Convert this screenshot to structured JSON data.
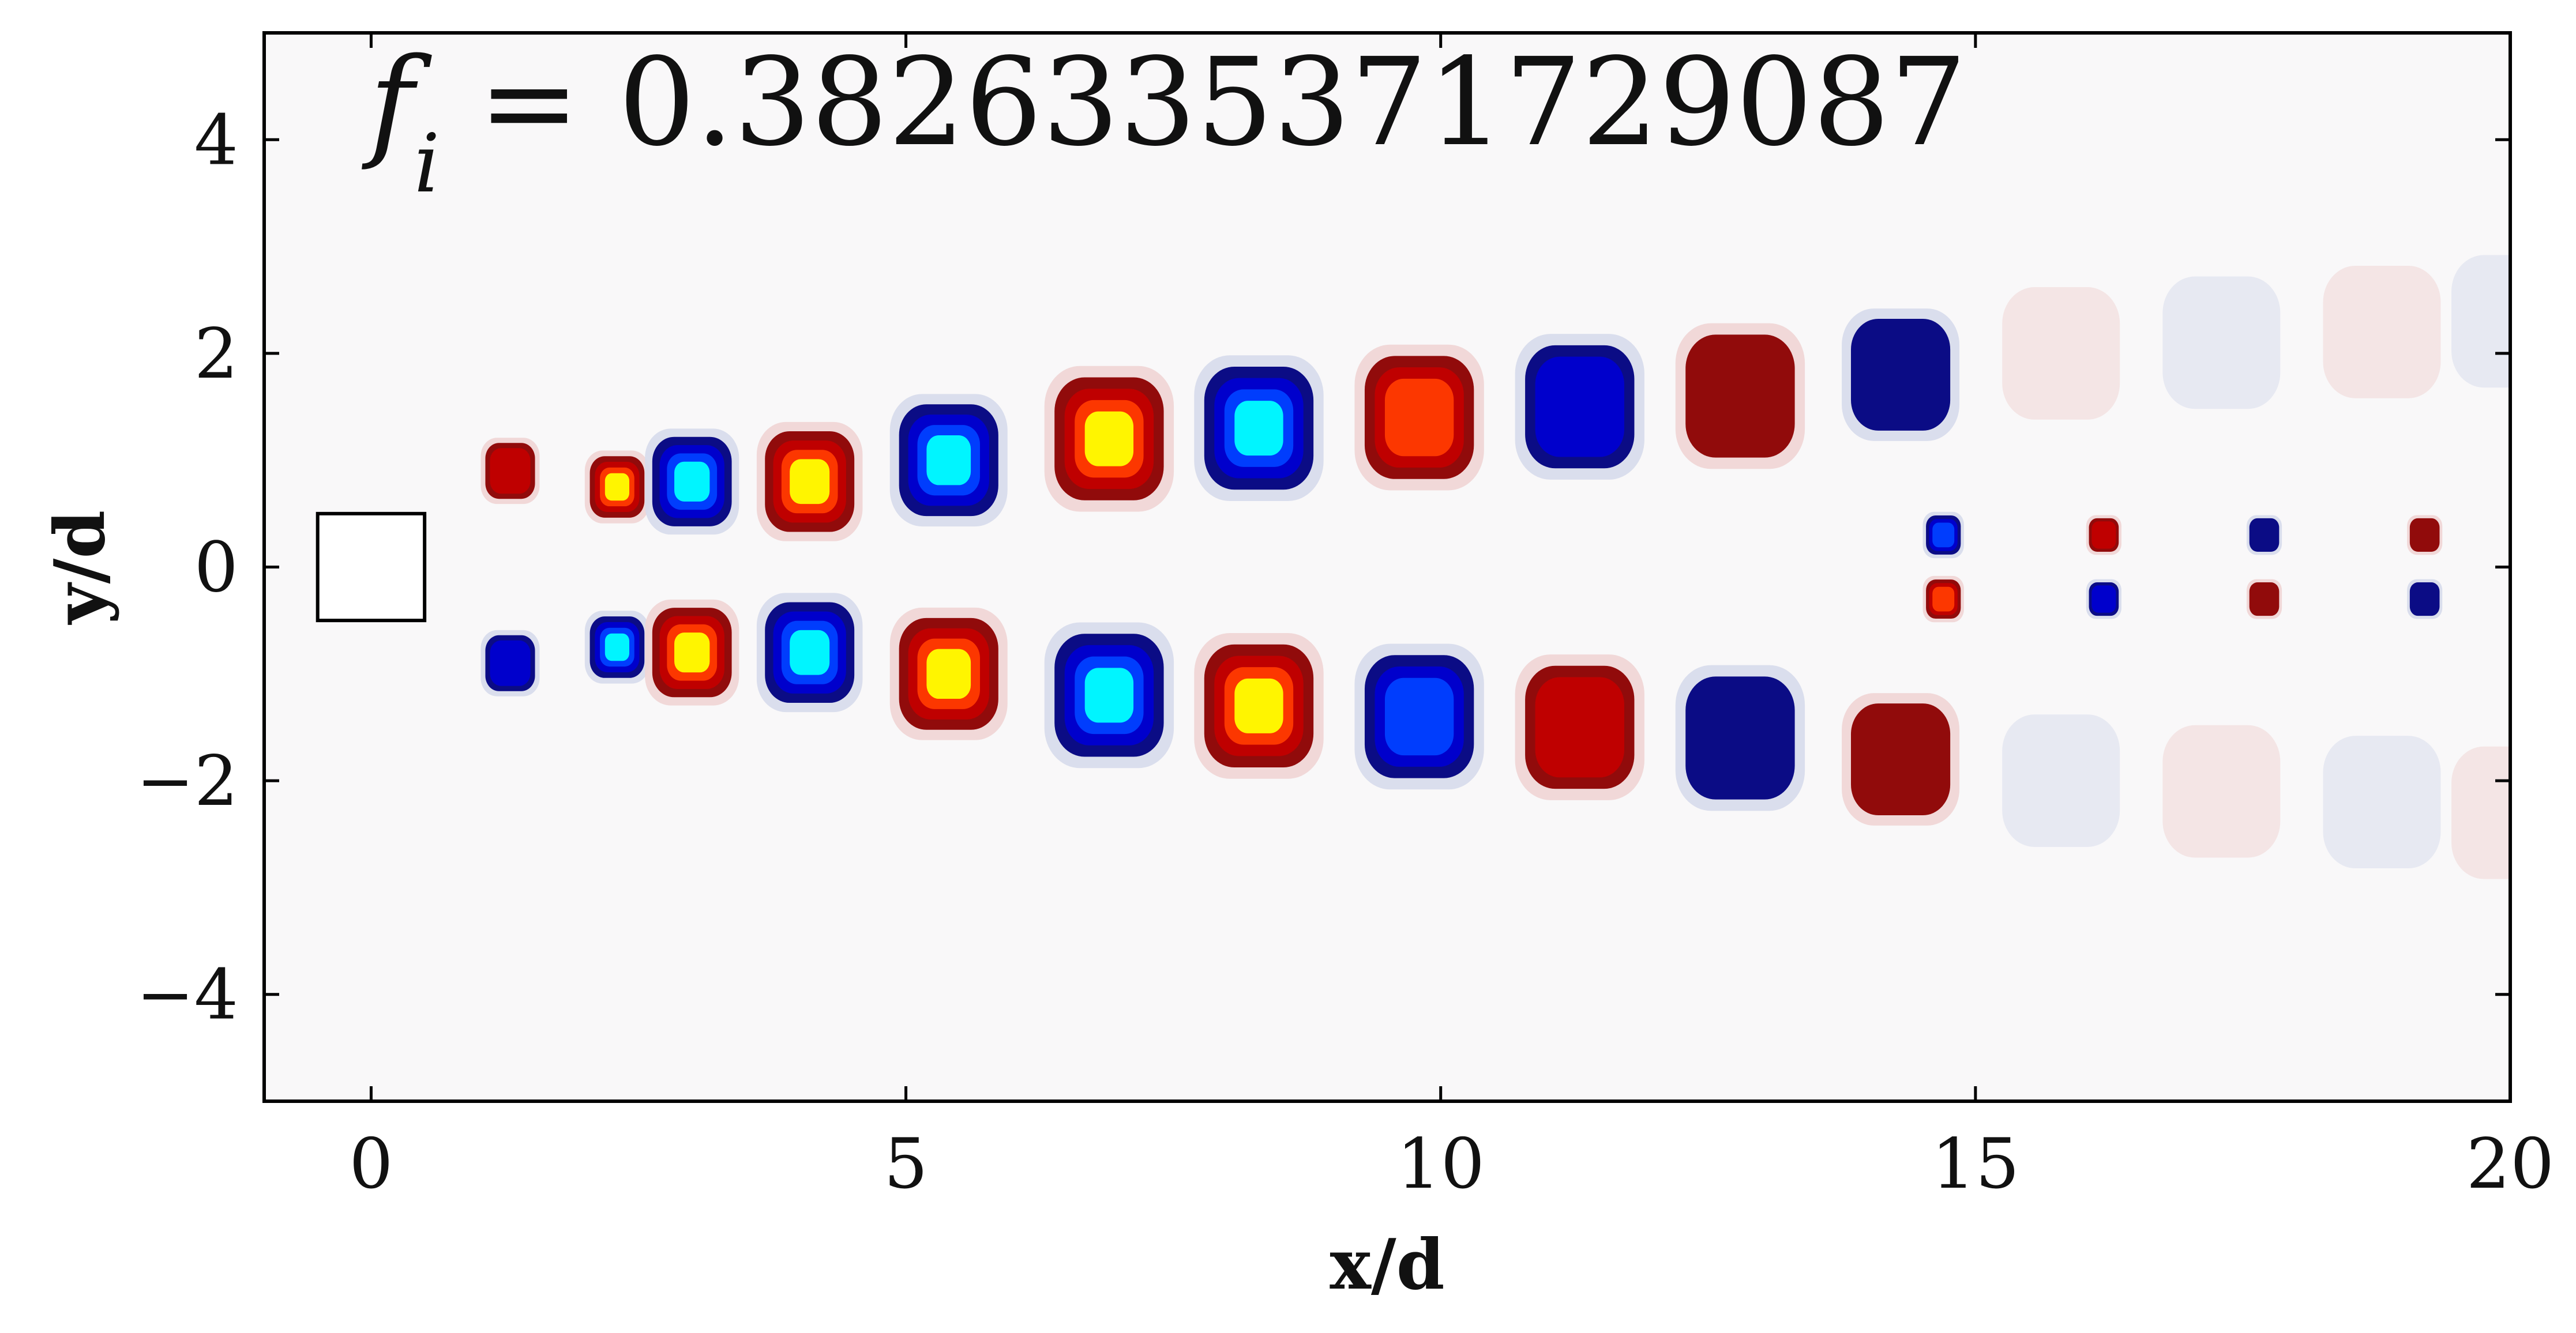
{
  "chart_data": {
    "type": "heatmap",
    "title": "",
    "annotation": {
      "symbol": "f",
      "subscript": "i",
      "equals": " = ",
      "value": "0.3826335371729087"
    },
    "xlabel": "x/d",
    "ylabel": "y/d",
    "xlim": [
      -1,
      20
    ],
    "ylim": [
      -5,
      5
    ],
    "x_ticks": [
      0,
      5,
      10,
      15,
      20
    ],
    "x_tick_labels": [
      "0",
      "5",
      "10",
      "15",
      "20"
    ],
    "y_ticks": [
      -4,
      -2,
      0,
      2,
      4
    ],
    "y_tick_labels": [
      "−4",
      "−2",
      "0",
      "2",
      "4"
    ],
    "grid": false,
    "colormap": "seismic-like (saturated: cyan negative, yellow positive)",
    "body": {
      "shape": "square",
      "center": [
        0,
        0
      ],
      "size": 1
    },
    "colors": {
      "neutral": "#f9f8f9",
      "pos_sat": "#ffff00",
      "pos_high": "#ff3a00",
      "pos_mid": "#c20000",
      "pos_low": "#8b0000",
      "pos_faint": "#f0d6d6",
      "neg_sat": "#00ffff",
      "neg_high": "#0040ff",
      "neg_mid": "#0000d0",
      "neg_low": "#000080",
      "neg_faint": "#d8dcec"
    },
    "vortices": [
      {
        "x": 1.3,
        "y": 0.9,
        "a": 0.5,
        "sign": 1,
        "level": 0.55
      },
      {
        "x": 1.3,
        "y": -0.9,
        "a": 0.5,
        "sign": -1,
        "level": 0.55
      },
      {
        "x": 2.3,
        "y": 0.75,
        "a": 0.55,
        "sign": 1,
        "level": 1.0
      },
      {
        "x": 2.3,
        "y": -0.75,
        "a": 0.55,
        "sign": -1,
        "level": 1.0
      },
      {
        "x": 3.0,
        "y": 0.8,
        "a": 0.8,
        "sign": -1,
        "level": 1.0
      },
      {
        "x": 3.0,
        "y": -0.8,
        "a": 0.8,
        "sign": 1,
        "level": 1.0
      },
      {
        "x": 4.1,
        "y": 0.8,
        "a": 0.9,
        "sign": 1,
        "level": 1.0
      },
      {
        "x": 4.1,
        "y": -0.8,
        "a": 0.9,
        "sign": -1,
        "level": 1.0
      },
      {
        "x": 5.4,
        "y": 1.0,
        "a": 1.0,
        "sign": -1,
        "level": 1.0
      },
      {
        "x": 5.4,
        "y": -1.0,
        "a": 1.0,
        "sign": 1,
        "level": 1.0
      },
      {
        "x": 6.9,
        "y": 1.2,
        "a": 1.1,
        "sign": 1,
        "level": 1.0
      },
      {
        "x": 6.9,
        "y": -1.2,
        "a": 1.1,
        "sign": -1,
        "level": 1.0
      },
      {
        "x": 8.3,
        "y": 1.3,
        "a": 1.1,
        "sign": -1,
        "level": 0.9
      },
      {
        "x": 8.3,
        "y": -1.3,
        "a": 1.1,
        "sign": 1,
        "level": 0.9
      },
      {
        "x": 9.8,
        "y": 1.4,
        "a": 1.1,
        "sign": 1,
        "level": 0.75
      },
      {
        "x": 9.8,
        "y": -1.4,
        "a": 1.1,
        "sign": -1,
        "level": 0.75
      },
      {
        "x": 11.3,
        "y": 1.5,
        "a": 1.1,
        "sign": -1,
        "level": 0.55
      },
      {
        "x": 11.3,
        "y": -1.5,
        "a": 1.1,
        "sign": 1,
        "level": 0.55
      },
      {
        "x": 12.8,
        "y": 1.6,
        "a": 1.1,
        "sign": 1,
        "level": 0.42
      },
      {
        "x": 12.8,
        "y": -1.6,
        "a": 1.1,
        "sign": -1,
        "level": 0.42
      },
      {
        "x": 14.3,
        "y": 1.8,
        "a": 1.0,
        "sign": -1,
        "level": 0.3
      },
      {
        "x": 14.3,
        "y": -1.8,
        "a": 1.0,
        "sign": 1,
        "level": 0.3
      },
      {
        "x": 15.8,
        "y": 2.0,
        "a": 1.0,
        "sign": 1,
        "level": 0.18
      },
      {
        "x": 15.8,
        "y": -2.0,
        "a": 1.0,
        "sign": -1,
        "level": 0.18
      },
      {
        "x": 17.3,
        "y": 2.1,
        "a": 1.0,
        "sign": -1,
        "level": 0.13
      },
      {
        "x": 17.3,
        "y": -2.1,
        "a": 1.0,
        "sign": 1,
        "level": 0.13
      },
      {
        "x": 18.8,
        "y": 2.2,
        "a": 1.0,
        "sign": 1,
        "level": 0.11
      },
      {
        "x": 18.8,
        "y": -2.2,
        "a": 1.0,
        "sign": -1,
        "level": 0.11
      },
      {
        "x": 20.0,
        "y": 2.3,
        "a": 1.0,
        "sign": -1,
        "level": 0.1
      },
      {
        "x": 20.0,
        "y": -2.3,
        "a": 1.0,
        "sign": 1,
        "level": 0.1
      },
      {
        "x": 14.7,
        "y": 0.3,
        "a": 0.35,
        "sign": -1,
        "level": 0.7
      },
      {
        "x": 14.7,
        "y": -0.3,
        "a": 0.35,
        "sign": 1,
        "level": 0.7
      },
      {
        "x": 16.2,
        "y": 0.3,
        "a": 0.3,
        "sign": 1,
        "level": 0.6
      },
      {
        "x": 16.2,
        "y": -0.3,
        "a": 0.3,
        "sign": -1,
        "level": 0.6
      },
      {
        "x": 17.7,
        "y": 0.3,
        "a": 0.3,
        "sign": -1,
        "level": 0.45
      },
      {
        "x": 17.7,
        "y": -0.3,
        "a": 0.3,
        "sign": 1,
        "level": 0.45
      },
      {
        "x": 19.2,
        "y": 0.3,
        "a": 0.3,
        "sign": 1,
        "level": 0.3
      },
      {
        "x": 19.2,
        "y": -0.3,
        "a": 0.3,
        "sign": -1,
        "level": 0.3
      }
    ]
  }
}
